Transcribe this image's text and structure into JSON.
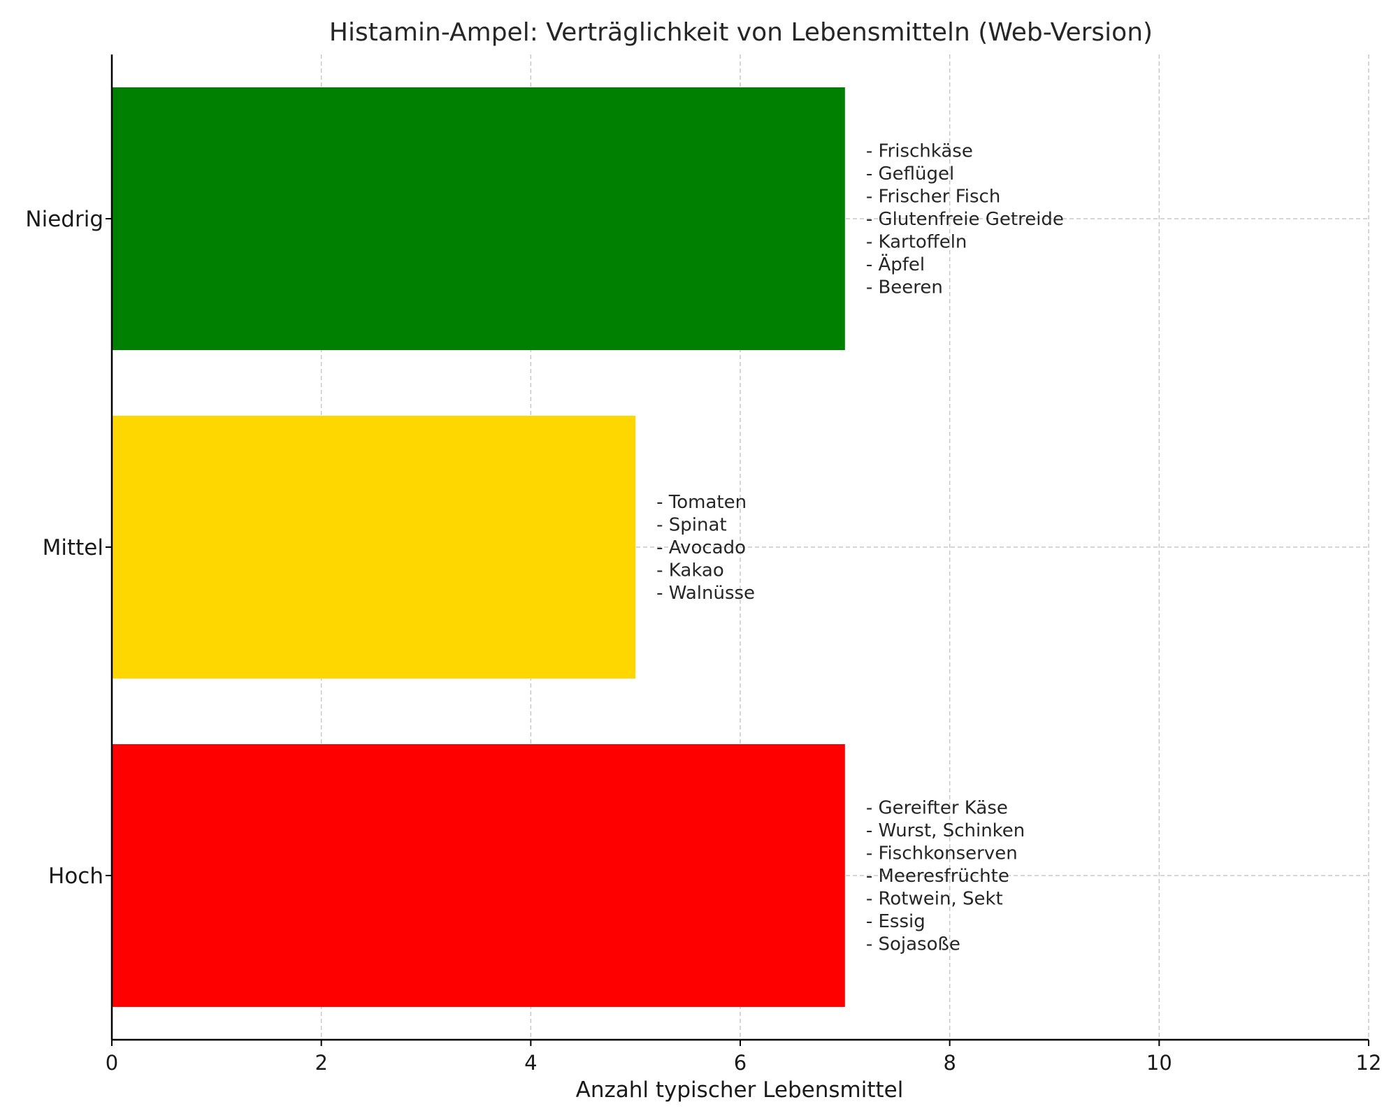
{
  "chart_data": {
    "type": "bar",
    "orientation": "horizontal",
    "title": "Histamin-Ampel: Verträglichkeit von Lebensmitteln (Web-Version)",
    "xlabel": "Anzahl typischer Lebensmittel",
    "ylabel": "",
    "xlim": [
      0,
      12
    ],
    "xticks": [
      0,
      2,
      4,
      6,
      8,
      10,
      12
    ],
    "grid": true,
    "categories": [
      "Niedrig",
      "Mittel",
      "Hoch"
    ],
    "values": [
      7,
      5,
      7
    ],
    "colors": [
      "#008000",
      "#ffd700",
      "#ff0000"
    ],
    "annotations": [
      [
        "- Frischkäse",
        "- Geflügel",
        "- Frischer Fisch",
        "- Glutenfreie Getreide",
        "- Kartoffeln",
        "- Äpfel",
        "- Beeren"
      ],
      [
        "- Tomaten",
        "- Spinat",
        "- Avocado",
        "- Kakao",
        "- Walnüsse"
      ],
      [
        "- Gereifter Käse",
        "- Wurst, Schinken",
        "- Fischkonserven",
        "- Meeresfrüchte",
        "- Rotwein, Sekt",
        "- Essig",
        "- Sojasoße"
      ]
    ]
  }
}
